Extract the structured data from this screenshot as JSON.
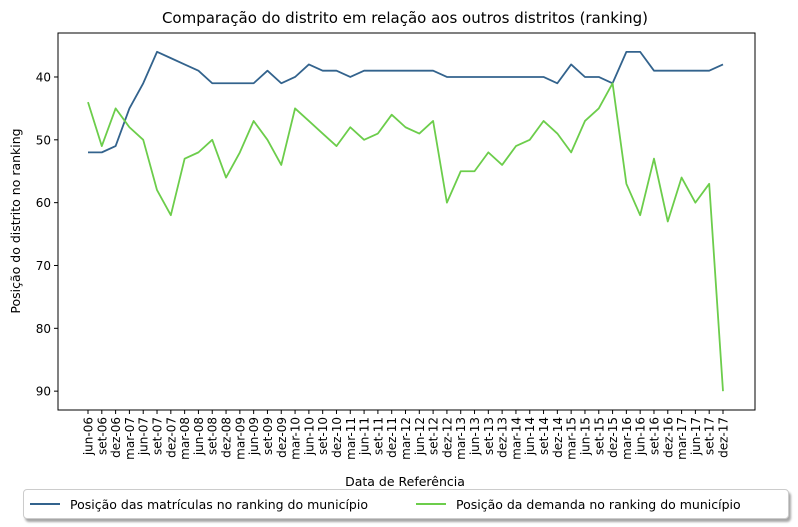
{
  "chart_data": {
    "type": "line",
    "title": "Comparação do distrito em relação aos outros distritos (ranking)",
    "xlabel": "Data de Referência",
    "ylabel": "Posição do distrito no ranking",
    "y_inverted": true,
    "ylim": [
      93,
      33
    ],
    "yticks": [
      40,
      50,
      60,
      70,
      80,
      90
    ],
    "grid": false,
    "legend_position": "bottom",
    "categories": [
      "jun-06",
      "set-06",
      "dez-06",
      "mar-07",
      "jun-07",
      "set-07",
      "dez-07",
      "mar-08",
      "jun-08",
      "set-08",
      "dez-08",
      "mar-09",
      "jun-09",
      "set-09",
      "dez-09",
      "mar-10",
      "jun-10",
      "set-10",
      "dez-10",
      "mar-11",
      "jun-11",
      "set-11",
      "dez-11",
      "mar-12",
      "jun-12",
      "set-12",
      "dez-12",
      "mar-13",
      "jun-13",
      "set-13",
      "dez-13",
      "mar-14",
      "jun-14",
      "set-14",
      "dez-14",
      "mar-15",
      "jun-15",
      "set-15",
      "dez-15",
      "mar-16",
      "jun-16",
      "set-16",
      "dez-16",
      "mar-17",
      "jun-17",
      "set-17",
      "dez-17"
    ],
    "series": [
      {
        "name": "Posição das matrículas no ranking do município",
        "color": "#33638d",
        "values": [
          52,
          52,
          51,
          45,
          41,
          36,
          37,
          38,
          39,
          41,
          41,
          41,
          41,
          39,
          41,
          40,
          38,
          39,
          39,
          40,
          39,
          39,
          39,
          39,
          39,
          39,
          40,
          40,
          40,
          40,
          40,
          40,
          40,
          40,
          41,
          38,
          40,
          40,
          41,
          36,
          36,
          39,
          39,
          39,
          39,
          39,
          38
        ]
      },
      {
        "name": "Posição da demanda no ranking do município",
        "color": "#6ccd4b",
        "values": [
          44,
          51,
          45,
          48,
          50,
          58,
          62,
          53,
          52,
          50,
          56,
          52,
          47,
          50,
          54,
          45,
          47,
          49,
          51,
          48,
          50,
          49,
          46,
          48,
          49,
          47,
          60,
          55,
          55,
          52,
          54,
          51,
          50,
          47,
          49,
          52,
          47,
          45,
          41,
          57,
          62,
          53,
          63,
          56,
          60,
          57,
          90
        ]
      }
    ]
  }
}
